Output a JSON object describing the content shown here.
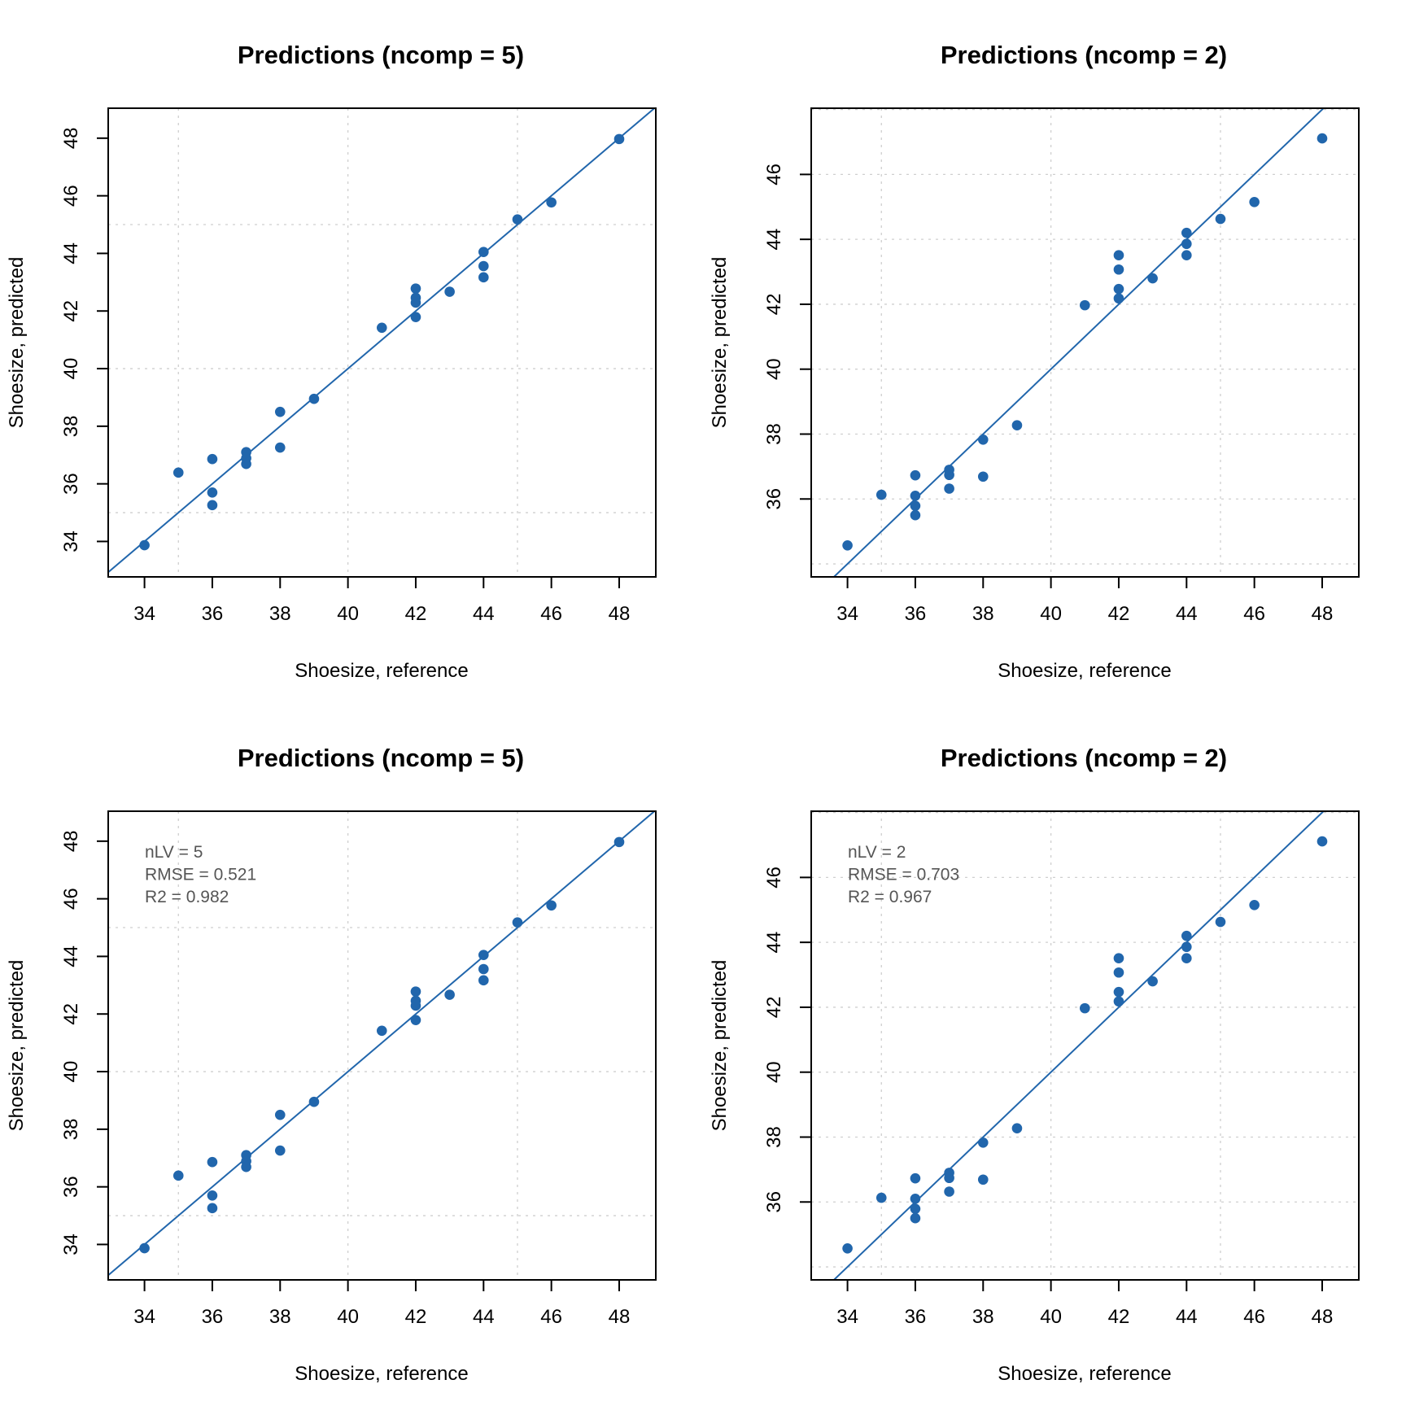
{
  "colors": {
    "points": "#2166ac",
    "line": "#2166ac",
    "annotation": "#555555",
    "grid": "#cfcfcf"
  },
  "chart_data": [
    {
      "type": "scatter",
      "panel": "top-left",
      "title": "Predictions (ncomp = 5)",
      "xlabel": "Shoesize, reference",
      "ylabel": "Shoesize, predicted",
      "xlim": [
        32.93,
        49.08
      ],
      "ylim": [
        32.77,
        49.04
      ],
      "xticks": [
        34,
        36,
        38,
        40,
        42,
        44,
        46,
        48
      ],
      "yticks": [
        34,
        36,
        38,
        40,
        42,
        44,
        46,
        48
      ],
      "xgrid": [
        35,
        40,
        45
      ],
      "ygrid": [
        35,
        40,
        45
      ],
      "grid": true,
      "reference_line": {
        "slope": 1,
        "intercept": 0
      },
      "annotation": [],
      "x": [
        34,
        35,
        36,
        36,
        36,
        37,
        37,
        37,
        38,
        38,
        39,
        41,
        42,
        42,
        42,
        42,
        43,
        44,
        44,
        44,
        45,
        46,
        48
      ],
      "y": [
        33.87,
        36.39,
        36.86,
        35.7,
        35.26,
        37.1,
        36.89,
        36.69,
        38.5,
        37.26,
        38.95,
        41.42,
        42.78,
        42.46,
        42.29,
        41.79,
        42.67,
        44.05,
        43.56,
        43.17,
        45.18,
        45.77,
        47.97
      ]
    },
    {
      "type": "scatter",
      "panel": "top-right",
      "title": "Predictions (ncomp = 2)",
      "xlabel": "Shoesize, reference",
      "ylabel": "Shoesize, predicted",
      "xlim": [
        32.93,
        49.08
      ],
      "ylim": [
        33.6,
        48.04
      ],
      "xticks": [
        34,
        36,
        38,
        40,
        42,
        44,
        46,
        48
      ],
      "yticks": [
        36,
        38,
        40,
        42,
        44,
        46
      ],
      "xgrid": [
        35,
        40,
        45
      ],
      "ygrid": [
        34,
        36,
        38,
        40,
        42,
        44,
        46,
        48
      ],
      "grid": true,
      "reference_line": {
        "slope": 1,
        "intercept": 0
      },
      "annotation": [],
      "x": [
        34,
        35,
        36,
        36,
        36,
        36,
        37,
        37,
        37,
        38,
        38,
        39,
        41,
        42,
        42,
        42,
        42,
        43,
        44,
        44,
        44,
        45,
        46,
        48
      ],
      "y": [
        34.57,
        36.13,
        36.73,
        36.1,
        35.79,
        35.5,
        36.9,
        36.74,
        36.32,
        37.83,
        36.69,
        38.27,
        41.97,
        43.51,
        43.07,
        42.47,
        42.18,
        42.8,
        44.2,
        43.86,
        43.51,
        44.63,
        45.15,
        47.11
      ]
    },
    {
      "type": "scatter",
      "panel": "bottom-left",
      "title": "Predictions (ncomp = 5)",
      "xlabel": "Shoesize, reference",
      "ylabel": "Shoesize, predicted",
      "xlim": [
        32.93,
        49.08
      ],
      "ylim": [
        32.77,
        49.04
      ],
      "xticks": [
        34,
        36,
        38,
        40,
        42,
        44,
        46,
        48
      ],
      "yticks": [
        34,
        36,
        38,
        40,
        42,
        44,
        46,
        48
      ],
      "xgrid": [
        35,
        40,
        45
      ],
      "ygrid": [
        35,
        40,
        45
      ],
      "grid": true,
      "reference_line": {
        "slope": 1,
        "intercept": 0
      },
      "annotation": [
        "nLV = 5",
        "RMSE = 0.521",
        "R2 = 0.982"
      ],
      "x": [
        34,
        35,
        36,
        36,
        36,
        37,
        37,
        37,
        38,
        38,
        39,
        41,
        42,
        42,
        42,
        42,
        43,
        44,
        44,
        44,
        45,
        46,
        48
      ],
      "y": [
        33.87,
        36.39,
        36.86,
        35.7,
        35.26,
        37.1,
        36.89,
        36.69,
        38.5,
        37.26,
        38.95,
        41.42,
        42.78,
        42.46,
        42.29,
        41.79,
        42.67,
        44.05,
        43.56,
        43.17,
        45.18,
        45.77,
        47.97
      ]
    },
    {
      "type": "scatter",
      "panel": "bottom-right",
      "title": "Predictions (ncomp = 2)",
      "xlabel": "Shoesize, reference",
      "ylabel": "Shoesize, predicted",
      "xlim": [
        32.93,
        49.08
      ],
      "ylim": [
        33.6,
        48.04
      ],
      "xticks": [
        34,
        36,
        38,
        40,
        42,
        44,
        46,
        48
      ],
      "yticks": [
        36,
        38,
        40,
        42,
        44,
        46
      ],
      "xgrid": [
        35,
        40,
        45
      ],
      "ygrid": [
        34,
        36,
        38,
        40,
        42,
        44,
        46,
        48
      ],
      "grid": true,
      "reference_line": {
        "slope": 1,
        "intercept": 0
      },
      "annotation": [
        "nLV = 2",
        "RMSE = 0.703",
        "R2 = 0.967"
      ],
      "x": [
        34,
        35,
        36,
        36,
        36,
        36,
        37,
        37,
        37,
        38,
        38,
        39,
        41,
        42,
        42,
        42,
        42,
        43,
        44,
        44,
        44,
        45,
        46,
        48
      ],
      "y": [
        34.57,
        36.13,
        36.73,
        36.1,
        35.79,
        35.5,
        36.9,
        36.74,
        36.32,
        37.83,
        36.69,
        38.27,
        41.97,
        43.51,
        43.07,
        42.47,
        42.18,
        42.8,
        44.2,
        43.86,
        43.51,
        44.63,
        45.15,
        47.11
      ]
    }
  ]
}
